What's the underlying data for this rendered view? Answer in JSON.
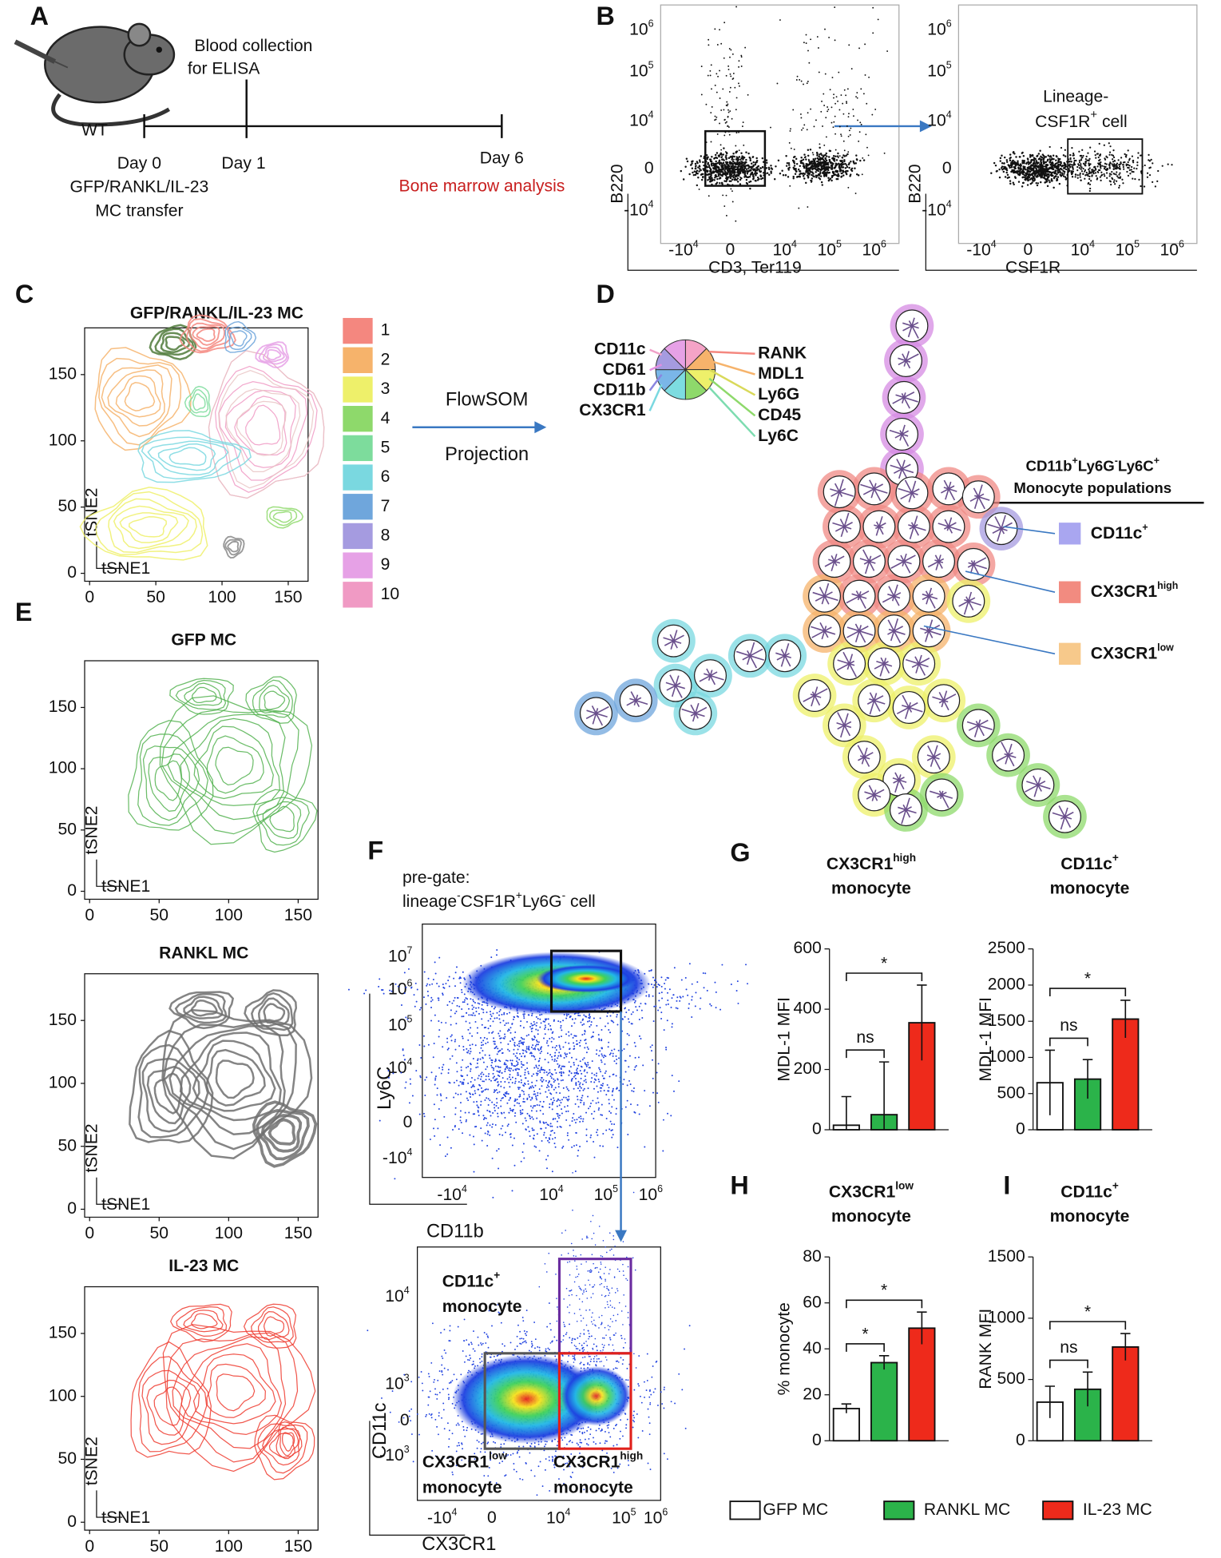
{
  "panel_a": {
    "letter": "A",
    "mouse_label": "WT",
    "blood": [
      "Blood collection",
      "for ELISA"
    ],
    "days": [
      "Day 0",
      "Day 1",
      "Day 6"
    ],
    "transfer": [
      "GFP/RANKL/IL-23",
      "MC transfer"
    ],
    "analysis": "Bone marrow analysis"
  },
  "panel_b": {
    "letter": "B",
    "y_label": "B220",
    "x_labels": [
      "CD3, Ter119",
      "CSF1R"
    ],
    "yticks": [
      {
        "base": "10",
        "exp": "6"
      },
      {
        "base": "10",
        "exp": "5"
      },
      {
        "base": "10",
        "exp": "4"
      },
      "0",
      {
        "base": "-10",
        "exp": "4"
      }
    ],
    "xticks": [
      {
        "base": "-10",
        "exp": "4"
      },
      "0",
      {
        "base": "10",
        "exp": "4"
      },
      {
        "base": "10",
        "exp": "5"
      },
      {
        "base": "10",
        "exp": "6"
      }
    ],
    "gate_line1": "Lineage-",
    "gate_line2": [
      "CSF1R",
      "+",
      " cell"
    ]
  },
  "panel_c": {
    "letter": "C",
    "title": "GFP/RANKL/IL-23 MC",
    "clusters": [
      {
        "label": 1,
        "color": "#f4877f"
      },
      {
        "label": 2,
        "color": "#f6b36b"
      },
      {
        "label": 3,
        "color": "#eef06a"
      },
      {
        "label": 4,
        "color": "#8ed96b"
      },
      {
        "label": 5,
        "color": "#7ddc9c"
      },
      {
        "label": 6,
        "color": "#7ad8e0"
      },
      {
        "label": 7,
        "color": "#6fa6dc"
      },
      {
        "label": 8,
        "color": "#a59be0"
      },
      {
        "label": 9,
        "color": "#e6a1e6"
      },
      {
        "label": 10,
        "color": "#f09ac4"
      }
    ]
  },
  "tsne": {
    "ticks": [
      0,
      50,
      100,
      150
    ],
    "x_label": "tSNE1",
    "y_label": "tSNE2"
  },
  "flowsom": {
    "method": "FlowSOM",
    "projection": "Projection"
  },
  "panel_d": {
    "letter": "D",
    "markers_left": [
      "CD11c",
      "CD61",
      "CD11b",
      "CX3CR1"
    ],
    "markers_right": [
      "RANK",
      "MDL1",
      "Ly6G",
      "CD45",
      "Ly6C"
    ],
    "pop_title": [
      [
        "CD11b",
        "+"
      ],
      [
        "Ly6G",
        "-"
      ],
      [
        "Ly6C",
        "+"
      ]
    ],
    "pop_title_line2": "Monocyte populations",
    "populations": [
      {
        "name": "CD11c",
        "sup": "+",
        "color": "#a9a6f0"
      },
      {
        "name": "CX3CR1",
        "sup": "high",
        "color": "#f28b80"
      },
      {
        "name": "CX3CR1",
        "sup": "low",
        "color": "#f7c98b"
      }
    ]
  },
  "panel_e": {
    "letter": "E",
    "plots": [
      {
        "title": "GFP MC",
        "color": "#52b14f"
      },
      {
        "title": "RANKL MC",
        "color": "#6f6f6f"
      },
      {
        "title": "IL-23 MC",
        "color": "#ee3b2f"
      }
    ]
  },
  "panel_f": {
    "letter": "F",
    "pregate": "pre-gate:",
    "pregate_line2": [
      [
        "lineage",
        "-"
      ],
      [
        "CSF1R",
        "+"
      ],
      [
        "Ly6G",
        "-"
      ]
    ],
    "pregate_end": " cell",
    "top": {
      "y_label": "Ly6C",
      "x_label": "CD11b",
      "yticks": [
        {
          "base": "10",
          "exp": "7"
        },
        {
          "base": "10",
          "exp": "6"
        },
        {
          "base": "10",
          "exp": "5"
        },
        {
          "base": "10",
          "exp": "4"
        },
        "0",
        {
          "base": "-10",
          "exp": "4"
        }
      ],
      "xticks": [
        {
          "base": "-10",
          "exp": "4"
        },
        {
          "base": "10",
          "exp": "4"
        },
        {
          "base": "10",
          "exp": "5"
        },
        {
          "base": "10",
          "exp": "6"
        }
      ]
    },
    "bottom": {
      "y_label": "CD11c",
      "x_label": "CX3CR1",
      "yticks": [
        {
          "base": "10",
          "exp": "4"
        },
        {
          "base": "10",
          "exp": "3"
        },
        "0",
        {
          "base": "-10",
          "exp": "3"
        }
      ],
      "xticks": [
        {
          "base": "-10",
          "exp": "4"
        },
        "0",
        {
          "base": "10",
          "exp": "4"
        },
        {
          "base": "10",
          "exp": "5"
        },
        {
          "base": "10",
          "exp": "6"
        }
      ],
      "gates": [
        {
          "name": "CD11c",
          "sup": "+",
          "line2": "monocyte"
        },
        {
          "name": "CX3CR1",
          "sup": "low",
          "line2": "monocyte"
        },
        {
          "name": "CX3CR1",
          "sup": "high",
          "line2": "monocyte"
        }
      ]
    }
  },
  "letters": [
    "G",
    "H",
    "I"
  ],
  "legend": [
    "GFP MC",
    "RANKL MC",
    "IL-23 MC"
  ],
  "chart_data": [
    {
      "type": "bar",
      "title": "CX3CR1",
      "title_sup": "high",
      "subtitle": "monocyte",
      "y_label": "MDL-1 MFI",
      "values": [
        15,
        50,
        355
      ],
      "errors": [
        95,
        175,
        125
      ],
      "colors": [
        "#ffffff",
        "#2bb34a",
        "#ee2a1b"
      ],
      "ylim": [
        0,
        600
      ],
      "yticks": [
        0,
        200,
        400,
        600
      ],
      "annotations": [
        "ns",
        "*"
      ]
    },
    {
      "type": "bar",
      "title": "CD11c",
      "title_sup": "+",
      "subtitle": "monocyte",
      "y_label": "MDL-1 MFI",
      "values": [
        650,
        700,
        1530
      ],
      "errors": [
        450,
        270,
        260
      ],
      "colors": [
        "#ffffff",
        "#2bb34a",
        "#ee2a1b"
      ],
      "ylim": [
        0,
        2500
      ],
      "yticks": [
        0,
        500,
        1000,
        1500,
        2000,
        2500
      ],
      "annotations": [
        "ns",
        "*"
      ]
    },
    {
      "type": "bar",
      "title": "CX3CR1",
      "title_sup": "low",
      "subtitle": "monocyte",
      "y_label": "% monocyte",
      "values": [
        14,
        34,
        49
      ],
      "errors": [
        2,
        3,
        7
      ],
      "colors": [
        "#ffffff",
        "#2bb34a",
        "#ee2a1b"
      ],
      "ylim": [
        0,
        80
      ],
      "yticks": [
        0,
        20,
        40,
        60,
        80
      ],
      "annotations": [
        "*",
        "*"
      ]
    },
    {
      "type": "bar",
      "title": "CD11c",
      "title_sup": "+",
      "subtitle": "monocyte",
      "y_label": "RANK MFI",
      "values": [
        315,
        420,
        765
      ],
      "errors": [
        130,
        140,
        110
      ],
      "colors": [
        "#ffffff",
        "#2bb34a",
        "#ee2a1b"
      ],
      "ylim": [
        0,
        1500
      ],
      "yticks": [
        0,
        500,
        1000,
        1500
      ],
      "annotations": [
        "ns",
        "*"
      ]
    }
  ]
}
